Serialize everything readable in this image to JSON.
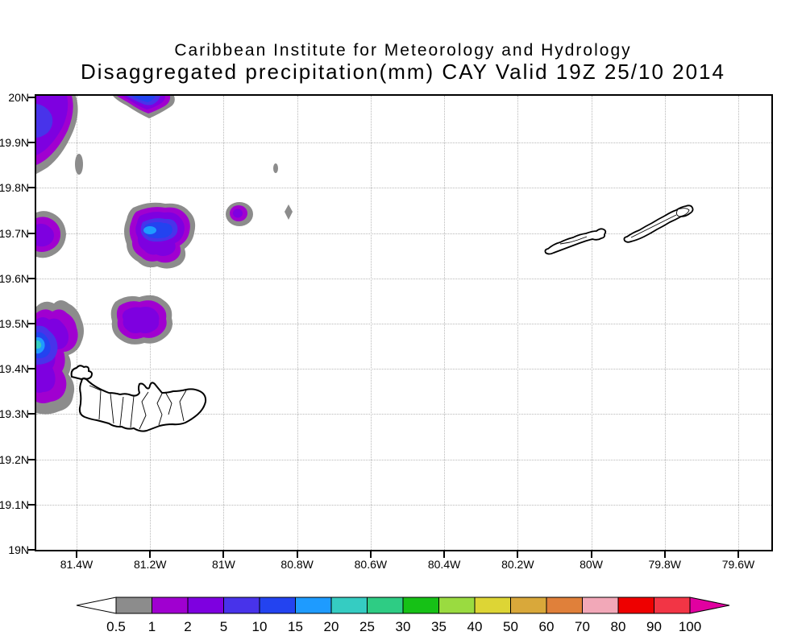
{
  "header": {
    "title": "Caribbean Institute for Meteorology and Hydrology",
    "subtitle": "Disaggregated precipitation(mm) CAY Valid 19Z 25/10 2014"
  },
  "chart_data": {
    "type": "heatmap",
    "subtype": "filled-contour-precipitation-map",
    "title": "Caribbean Institute for Meteorology and Hydrology",
    "subtitle": "Disaggregated precipitation(mm) CAY Valid 19Z 25/10 2014",
    "units": "mm",
    "grid": "dotted",
    "lon_ticks": [
      "81.4W",
      "81.2W",
      "81W",
      "80.8W",
      "80.6W",
      "80.4W",
      "80.2W",
      "80W",
      "79.8W",
      "79.6W"
    ],
    "lat_ticks": [
      "20N",
      "19.9N",
      "19.8N",
      "19.7N",
      "19.6N",
      "19.5N",
      "19.4N",
      "19.3N",
      "19.2N",
      "19.1N",
      "19N"
    ],
    "lon_range_west_deg": [
      81.51,
      79.51
    ],
    "lat_range_north_deg": [
      19.0,
      20.0
    ],
    "palette": {
      "lt0_5": "#FFFFFF",
      "b0_5_1": "#8C8C8C",
      "b1_2": "#A000D0",
      "b2_5": "#7E00E0",
      "b5_10": "#4833EA",
      "b10_15": "#2343F0",
      "b15_20": "#1E9BFF",
      "b20_25": "#35CCC2",
      "b25_30": "#2ECC84",
      "b30_35": "#16C116",
      "b35_40": "#9ADB40",
      "b40_50": "#DDD535",
      "b50_60": "#D9A83A",
      "b60_70": "#E0803A",
      "b70_80": "#F2A8B8",
      "b80_90": "#EE0000",
      "b90_100": "#F23545",
      "gt100": "#E100A0"
    },
    "colorbar": {
      "labels": [
        "0.5",
        "1",
        "2",
        "5",
        "10",
        "15",
        "20",
        "25",
        "30",
        "35",
        "40",
        "50",
        "60",
        "70",
        "80",
        "90",
        "100"
      ],
      "order": [
        "b0_5_1",
        "b1_2",
        "b2_5",
        "b5_10",
        "b10_15",
        "b15_20",
        "b20_25",
        "b25_30",
        "b30_35",
        "b35_40",
        "b40_50",
        "b50_60",
        "b60_70",
        "b70_80",
        "b80_90",
        "b90_100"
      ],
      "under_key": "lt0_5",
      "over_key": "gt100"
    },
    "precip_cells": [
      {
        "approx_lon_w": 81.5,
        "approx_lat_n": 19.95,
        "peak_bin_mm": "5-10"
      },
      {
        "approx_lon_w": 81.22,
        "approx_lat_n": 19.99,
        "peak_bin_mm": "10-15"
      },
      {
        "approx_lon_w": 81.39,
        "approx_lat_n": 19.85,
        "peak_bin_mm": "0.5-1"
      },
      {
        "approx_lon_w": 80.86,
        "approx_lat_n": 19.84,
        "peak_bin_mm": "0.5-1"
      },
      {
        "approx_lon_w": 81.5,
        "approx_lat_n": 19.7,
        "peak_bin_mm": "2-5"
      },
      {
        "approx_lon_w": 81.18,
        "approx_lat_n": 19.7,
        "peak_bin_mm": "15-20"
      },
      {
        "approx_lon_w": 80.97,
        "approx_lat_n": 19.74,
        "peak_bin_mm": "2-5"
      },
      {
        "approx_lon_w": 80.82,
        "approx_lat_n": 19.75,
        "peak_bin_mm": "0.5-1"
      },
      {
        "approx_lon_w": 81.21,
        "approx_lat_n": 19.5,
        "peak_bin_mm": "2-5"
      },
      {
        "approx_lon_w": 81.5,
        "approx_lat_n": 19.44,
        "peak_bin_mm": "20-25"
      }
    ]
  }
}
